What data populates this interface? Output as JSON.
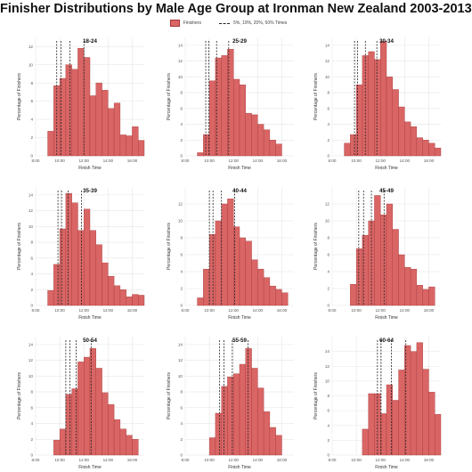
{
  "title": "Finisher Distributions by Male Age Group at Ironman New Zealand 2003-2013",
  "legend": {
    "bars_label": "Finishers",
    "lines_label": "5%, 10%, 20%, 50% Times"
  },
  "colors": {
    "bar_fill": "#d96565",
    "bar_stroke": "#a83a3a",
    "grid": "#e6e6e6",
    "line": "#222222"
  },
  "chart_data": [
    {
      "type": "bar",
      "title": "18-24",
      "xlabel": "Finish Time",
      "ylabel": "Percentage of Finishers",
      "xlim": [
        8,
        17
      ],
      "ylim": [
        0,
        13
      ],
      "xticks": [
        "8:00",
        "10:00",
        "12:00",
        "14:00",
        "16:00"
      ],
      "yticks": [
        0,
        2,
        4,
        6,
        8,
        10,
        12
      ],
      "bin_start": 9.0,
      "bin_width": 0.5,
      "values": [
        2.7,
        7.7,
        8.5,
        10.0,
        9.5,
        11.8,
        10.8,
        6.6,
        8.0,
        7.2,
        5.2,
        5.8,
        2.3,
        2.2,
        3.2,
        1.7
      ],
      "quantile_lines": [
        9.75,
        10.1,
        10.85,
        12.0
      ]
    },
    {
      "type": "bar",
      "title": "25-29",
      "xlabel": "Finish Time",
      "ylabel": "Percentage of Finishers",
      "xlim": [
        8,
        17
      ],
      "ylim": [
        0,
        15
      ],
      "xticks": [
        "8:00",
        "10:00",
        "12:00",
        "14:00",
        "16:00"
      ],
      "yticks": [
        0,
        2,
        4,
        6,
        8,
        10,
        12,
        14
      ],
      "bin_start": 9.0,
      "bin_width": 0.5,
      "values": [
        0.4,
        2.7,
        9.5,
        12.4,
        12.7,
        13.5,
        9.7,
        9.0,
        5.4,
        5.2,
        4.0,
        3.3,
        2.0,
        1.5
      ],
      "quantile_lines": [
        9.7,
        9.95,
        10.6,
        11.6
      ]
    },
    {
      "type": "bar",
      "title": "30-34",
      "xlabel": "Finish Time",
      "ylabel": "Percentage of Finishers",
      "xlim": [
        8,
        17
      ],
      "ylim": [
        0,
        15
      ],
      "xticks": [
        "8:00",
        "10:00",
        "12:00",
        "14:00",
        "16:00"
      ],
      "yticks": [
        0,
        2,
        4,
        6,
        8,
        10,
        12,
        14
      ],
      "bin_start": 9.0,
      "bin_width": 0.5,
      "values": [
        1.6,
        2.7,
        9.0,
        12.7,
        13.2,
        12.2,
        14.5,
        10.0,
        8.4,
        6.2,
        4.3,
        3.7,
        2.3,
        2.0,
        1.6,
        1.0
      ],
      "quantile_lines": [
        9.85,
        10.1,
        10.75,
        11.7
      ]
    },
    {
      "type": "bar",
      "title": "35-39",
      "xlabel": "Finish Time",
      "ylabel": "Percentage of Finishers",
      "xlim": [
        8,
        17
      ],
      "ylim": [
        0,
        15
      ],
      "xticks": [
        "8:00",
        "10:00",
        "12:00",
        "14:00",
        "16:00"
      ],
      "yticks": [
        0,
        2,
        4,
        6,
        8,
        10,
        12,
        14
      ],
      "bin_start": 9.0,
      "bin_width": 0.5,
      "values": [
        1.9,
        5.2,
        9.7,
        14.2,
        13.0,
        9.5,
        12.2,
        9.5,
        7.7,
        5.4,
        3.7,
        2.5,
        2.0,
        1.1,
        1.4,
        1.3
      ],
      "quantile_lines": [
        9.85,
        10.15,
        10.7,
        11.8
      ]
    },
    {
      "type": "bar",
      "title": "40-44",
      "xlabel": "Finish Time",
      "ylabel": "Percentage of Finishers",
      "xlim": [
        8,
        17
      ],
      "ylim": [
        0,
        14
      ],
      "xticks": [
        "8:00",
        "10:00",
        "12:00",
        "14:00",
        "16:00"
      ],
      "yticks": [
        0,
        2,
        4,
        6,
        8,
        10,
        12
      ],
      "bin_start": 9.0,
      "bin_width": 0.5,
      "values": [
        0.9,
        4.3,
        8.4,
        10.0,
        12.0,
        12.6,
        9.3,
        8.0,
        7.6,
        5.4,
        4.3,
        3.3,
        2.3,
        1.9,
        1.5
      ],
      "quantile_lines": [
        10.0,
        10.3,
        11.0,
        12.1
      ]
    },
    {
      "type": "bar",
      "title": "45-49",
      "xlabel": "Finish Time",
      "ylabel": "Percentage of Finishers",
      "xlim": [
        8,
        17
      ],
      "ylim": [
        0,
        14
      ],
      "xticks": [
        "8:00",
        "10:00",
        "12:00",
        "14:00",
        "16:00"
      ],
      "yticks": [
        0,
        2,
        4,
        6,
        8,
        10,
        12
      ],
      "bin_start": 9.5,
      "bin_width": 0.5,
      "values": [
        2.5,
        6.7,
        8.3,
        10.0,
        13.0,
        10.7,
        12.0,
        9.0,
        6.0,
        4.5,
        4.3,
        2.4,
        1.9,
        2.2
      ],
      "quantile_lines": [
        10.2,
        10.6,
        11.25,
        12.3
      ]
    },
    {
      "type": "bar",
      "title": "50-54",
      "xlabel": "Finish Time",
      "ylabel": "Percentage of Finishers",
      "xlim": [
        8,
        17
      ],
      "ylim": [
        0,
        15
      ],
      "xticks": [
        "8:00",
        "10:00",
        "12:00",
        "14:00",
        "16:00"
      ],
      "yticks": [
        0,
        2,
        4,
        6,
        8,
        10,
        12,
        14
      ],
      "bin_start": 9.5,
      "bin_width": 0.5,
      "values": [
        1.9,
        3.3,
        7.7,
        8.4,
        11.8,
        12.4,
        13.5,
        11.0,
        7.9,
        6.4,
        4.5,
        3.3,
        2.5,
        2.0
      ],
      "quantile_lines": [
        10.5,
        10.85,
        11.35,
        12.6
      ]
    },
    {
      "type": "bar",
      "title": "55-59",
      "xlabel": "Finish Time",
      "ylabel": "Percentage of Finishers",
      "xlim": [
        8,
        17
      ],
      "ylim": [
        0,
        15
      ],
      "xticks": [
        "8:00",
        "10:00",
        "12:00",
        "14:00",
        "16:00"
      ],
      "yticks": [
        0,
        2,
        4,
        6,
        8,
        10,
        12,
        14
      ],
      "bin_start": 10.0,
      "bin_width": 0.5,
      "values": [
        2.2,
        5.3,
        8.7,
        9.9,
        10.3,
        11.5,
        13.5,
        11.0,
        8.5,
        5.5,
        3.5,
        2.5
      ],
      "quantile_lines": [
        10.85,
        11.2,
        11.9,
        13.2
      ]
    },
    {
      "type": "bar",
      "title": "60-64",
      "xlabel": "Finish Time",
      "ylabel": "Percentage of Finishers",
      "xlim": [
        8,
        17
      ],
      "ylim": [
        0,
        16
      ],
      "xticks": [
        "8:00",
        "10:00",
        "12:00",
        "14:00",
        "16:00"
      ],
      "yticks": [
        0,
        2,
        4,
        6,
        8,
        10,
        12,
        14
      ],
      "bin_start": 10.5,
      "bin_width": 0.5,
      "values": [
        3.5,
        8.3,
        8.3,
        5.6,
        9.5,
        7.4,
        11.5,
        14.8,
        14.0,
        15.2,
        11.6,
        8.5,
        5.5
      ],
      "quantile_lines": [
        11.75,
        12.05,
        12.9,
        14.1
      ]
    }
  ]
}
